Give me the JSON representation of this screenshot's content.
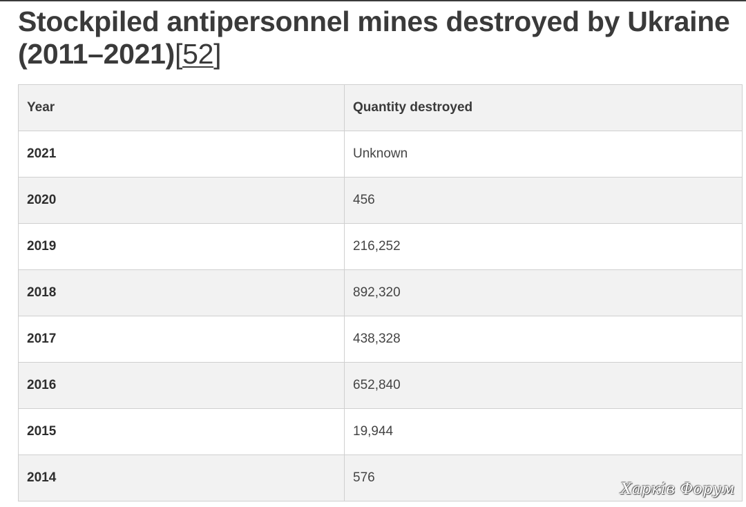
{
  "article": {
    "title": "Stockpiled antipersonnel mines destroyed by Ukraine (2011–2021)",
    "reference": {
      "open": "[",
      "label": "52",
      "close": "]"
    }
  },
  "table": {
    "headers": [
      "Year",
      "Quantity destroyed"
    ],
    "rows": [
      {
        "year": "2021",
        "quantity": "Unknown"
      },
      {
        "year": "2020",
        "quantity": "456"
      },
      {
        "year": "2019",
        "quantity": "216,252"
      },
      {
        "year": "2018",
        "quantity": "892,320"
      },
      {
        "year": "2017",
        "quantity": "438,328"
      },
      {
        "year": "2016",
        "quantity": "652,840"
      },
      {
        "year": "2015",
        "quantity": "19,944"
      },
      {
        "year": "2014",
        "quantity": "576"
      }
    ]
  },
  "watermark": {
    "text": "Харків Форум"
  },
  "colors": {
    "text": "#3a3a3a",
    "header_bg": "#f2f2f2",
    "stripe_bg": "#f2f2f2",
    "border": "#cfcfcf"
  }
}
